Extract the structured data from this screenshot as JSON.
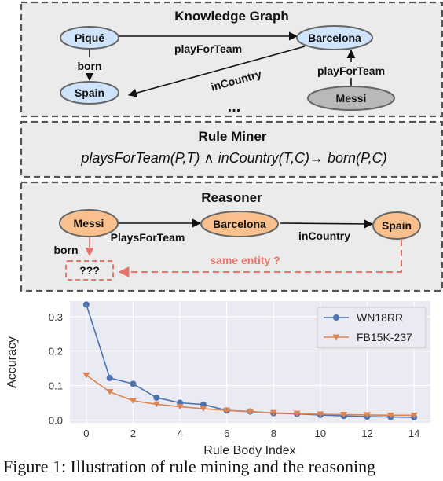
{
  "kg": {
    "title": "Knowledge Graph",
    "nodes": {
      "pique": "Piqué",
      "barcelona": "Barcelona",
      "spain": "Spain",
      "messi": "Messi"
    },
    "edges": {
      "play_for_team_top": "playForTeam",
      "born": "born",
      "in_country": "inCountry",
      "play_for_team_right": "playForTeam"
    },
    "ellipsis": "..."
  },
  "rule_miner": {
    "title": "Rule Miner",
    "rule": "playsForTeam(P,T) ∧ inCountry(T,C)→ born(P,C)"
  },
  "reasoner": {
    "title": "Reasoner",
    "nodes": {
      "messi": "Messi",
      "barcelona": "Barcelona",
      "spain": "Spain",
      "unknown": "???"
    },
    "edges": {
      "plays_for_team": "PlaysForTeam",
      "in_country": "inCountry",
      "born": "born"
    },
    "same_entity": "same entity ?"
  },
  "colors": {
    "light_blue": "#cfe3fb",
    "grey": "#b9b9b9",
    "orange": "#f9c08d",
    "dashed_red": "#e8746c",
    "series_blue": "#4c72b0",
    "series_orange": "#dd8452"
  },
  "chart_data": {
    "type": "line",
    "xlabel": "Rule Body Index",
    "ylabel": "Accuracy",
    "x": [
      0,
      1,
      2,
      3,
      4,
      5,
      6,
      7,
      8,
      9,
      10,
      11,
      12,
      13,
      14
    ],
    "xticks": [
      "0",
      "2",
      "4",
      "6",
      "8",
      "10",
      "12",
      "14"
    ],
    "yticks": [
      "0.0",
      "0.1",
      "0.2",
      "0.3"
    ],
    "xlim": [
      -0.7,
      14.7
    ],
    "ylim": [
      -0.008,
      0.345
    ],
    "grid": true,
    "legend_position": "top-right",
    "series": [
      {
        "name": "WN18RR",
        "marker": "circle",
        "values": [
          0.335,
          0.122,
          0.105,
          0.065,
          0.05,
          0.045,
          0.028,
          0.025,
          0.02,
          0.018,
          0.015,
          0.012,
          0.01,
          0.009,
          0.008
        ]
      },
      {
        "name": "FB15K-237",
        "marker": "triangle-down",
        "values": [
          0.13,
          0.082,
          0.056,
          0.046,
          0.039,
          0.033,
          0.028,
          0.024,
          0.021,
          0.019,
          0.017,
          0.016,
          0.015,
          0.014,
          0.014
        ]
      }
    ]
  },
  "caption": "Figure 1: Illustration of rule mining and the reasoning"
}
